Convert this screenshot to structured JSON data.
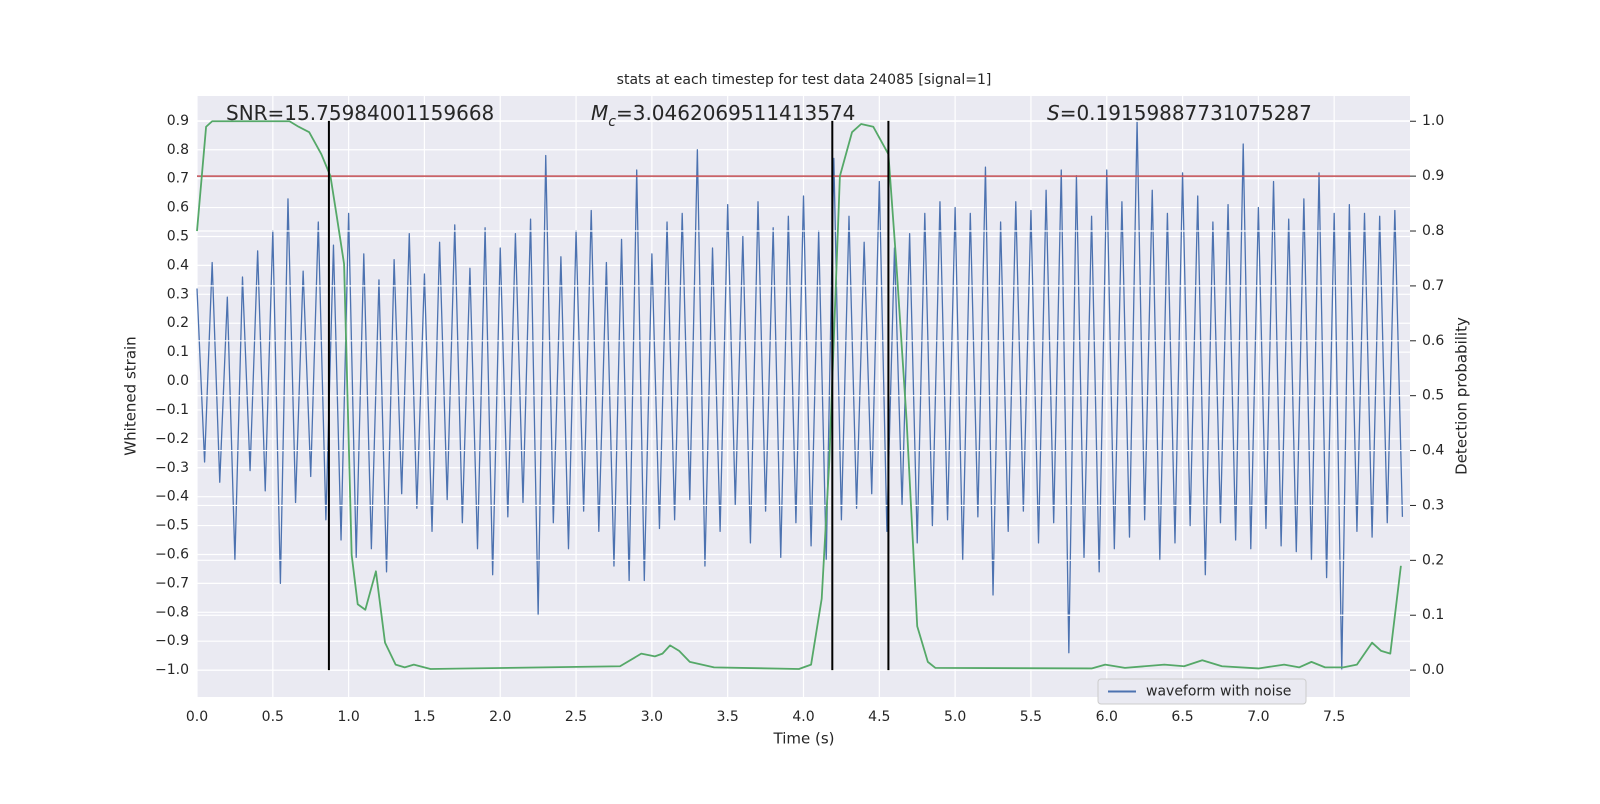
{
  "chart_data": {
    "type": "line",
    "title": "stats at each timestep for test data 24085 [signal=1]",
    "xlabel": "Time (s)",
    "ylabel": "Whitened strain",
    "y2label": "Detection probability",
    "annotations": [
      {
        "text": "SNR=15.75984001159668"
      },
      {
        "symbol": "M",
        "subscript": "c",
        "text": "=3.0462069511413574"
      },
      {
        "symbol": "S",
        "text": "=0.19159887731075287"
      }
    ],
    "xlim": [
      0,
      8.0
    ],
    "ylim": [
      -1.093,
      0.986
    ],
    "y2lim": [
      -0.049,
      1.046
    ],
    "xticks": [
      {
        "value": 0,
        "label": "0.0"
      },
      0.5,
      {
        "value": 1,
        "label": "1.0"
      },
      1.5,
      {
        "value": 2,
        "label": "2.0"
      },
      2.5,
      {
        "value": 3,
        "label": "3.0"
      },
      3.5,
      {
        "value": 4,
        "label": "4.0"
      },
      4.5,
      {
        "value": 5,
        "label": "5.0"
      },
      5.5,
      {
        "value": 6,
        "label": "6.0"
      },
      6.5,
      {
        "value": 7,
        "label": "7.0"
      },
      7.5
    ],
    "yticks": [
      {
        "value": -1,
        "label": "−1.0"
      },
      {
        "value": -0.9,
        "label": "−0.9"
      },
      {
        "value": -0.8,
        "label": "−0.8"
      },
      {
        "value": -0.7,
        "label": "−0.7"
      },
      {
        "value": -0.6,
        "label": "−0.6"
      },
      {
        "value": -0.5,
        "label": "−0.5"
      },
      {
        "value": -0.4,
        "label": "−0.4"
      },
      {
        "value": -0.3,
        "label": "−0.3"
      },
      {
        "value": -0.2,
        "label": "−0.2"
      },
      {
        "value": -0.1,
        "label": "−0.1"
      },
      {
        "value": 0,
        "label": "0.0"
      },
      0.1,
      0.2,
      0.3,
      0.4,
      0.5,
      0.6,
      0.7,
      0.8,
      0.9
    ],
    "y2ticks": [
      {
        "value": 0,
        "label": "0.0"
      },
      0.1,
      0.2,
      0.3,
      0.4,
      0.5,
      0.6,
      0.7,
      0.8,
      0.9,
      {
        "value": 1,
        "label": "1.0"
      }
    ],
    "grid": true,
    "legend": "best",
    "series": [
      {
        "name": "waveform with noise",
        "color": "#4c72b0",
        "x": [
          0,
          0.05,
          0.1,
          0.15,
          0.2,
          0.25,
          0.3,
          0.35,
          0.4,
          0.45,
          0.5,
          0.55,
          0.6,
          0.65,
          0.7,
          0.75,
          0.8,
          0.85,
          0.9,
          0.95,
          1,
          1.05,
          1.1,
          1.15,
          1.2,
          1.25,
          1.3,
          1.35,
          1.4,
          1.45,
          1.5,
          1.55,
          1.6,
          1.65,
          1.7,
          1.75,
          1.8,
          1.85,
          1.9,
          1.95,
          2,
          2.05,
          2.1,
          2.15,
          2.2,
          2.25,
          2.3,
          2.35,
          2.4,
          2.45,
          2.5,
          2.55,
          2.6,
          2.65,
          2.7,
          2.75,
          2.8,
          2.85,
          2.9,
          2.95,
          3,
          3.05,
          3.1,
          3.15,
          3.2,
          3.25,
          3.3,
          3.35,
          3.4,
          3.45,
          3.5,
          3.55,
          3.6,
          3.65,
          3.7,
          3.75,
          3.8,
          3.85,
          3.9,
          3.95,
          4,
          4.05,
          4.1,
          4.15,
          4.2,
          4.25,
          4.3,
          4.35,
          4.4,
          4.45,
          4.5,
          4.55,
          4.6,
          4.65,
          4.7,
          4.75,
          4.8,
          4.85,
          4.9,
          4.95,
          5,
          5.05,
          5.1,
          5.15,
          5.2,
          5.25,
          5.3,
          5.35,
          5.4,
          5.45,
          5.5,
          5.55,
          5.6,
          5.65,
          5.7,
          5.75,
          5.8,
          5.85,
          5.9,
          5.95,
          6,
          6.05,
          6.1,
          6.15,
          6.2,
          6.25,
          6.3,
          6.35,
          6.4,
          6.45,
          6.5,
          6.55,
          6.6,
          6.65,
          6.7,
          6.75,
          6.8,
          6.85,
          6.9,
          6.95,
          7,
          7.05,
          7.1,
          7.15,
          7.2,
          7.25,
          7.3,
          7.35,
          7.4,
          7.45,
          7.5,
          7.55,
          7.6,
          7.65,
          7.7,
          7.75,
          7.8,
          7.85,
          7.9,
          7.95
        ],
        "values": [
          0.32,
          -0.28,
          0.41,
          -0.35,
          0.29,
          -0.62,
          0.36,
          -0.31,
          0.45,
          -0.38,
          0.52,
          -0.7,
          0.63,
          -0.42,
          0.38,
          -0.33,
          0.55,
          -0.48,
          0.47,
          -0.55,
          0.58,
          -0.61,
          0.44,
          -0.58,
          0.35,
          -0.66,
          0.42,
          -0.39,
          0.51,
          -0.44,
          0.37,
          -0.52,
          0.48,
          -0.41,
          0.54,
          -0.49,
          0.39,
          -0.58,
          0.53,
          -0.67,
          0.46,
          -0.47,
          0.51,
          -0.42,
          0.56,
          -0.81,
          0.78,
          -0.49,
          0.43,
          -0.58,
          0.52,
          -0.45,
          0.59,
          -0.52,
          0.41,
          -0.64,
          0.49,
          -0.69,
          0.73,
          -0.69,
          0.44,
          -0.51,
          0.55,
          -0.48,
          0.58,
          -0.41,
          0.8,
          -0.64,
          0.46,
          -0.52,
          0.61,
          -0.43,
          0.5,
          -0.56,
          0.62,
          -0.45,
          0.53,
          -0.61,
          0.57,
          -0.49,
          0.64,
          -0.57,
          0.52,
          -0.62,
          0.77,
          -0.48,
          0.57,
          -0.44,
          0.48,
          -0.39,
          0.69,
          -0.52,
          0.46,
          -0.43,
          0.51,
          -0.56,
          0.58,
          -0.5,
          0.62,
          -0.48,
          0.6,
          -0.62,
          0.58,
          -0.47,
          0.74,
          -0.74,
          0.55,
          -0.52,
          0.62,
          -0.45,
          0.59,
          -0.56,
          0.66,
          -0.49,
          0.73,
          -0.94,
          0.71,
          -0.61,
          0.57,
          -0.66,
          0.73,
          -0.58,
          0.62,
          -0.54,
          0.9,
          -0.48,
          0.66,
          -0.62,
          0.58,
          -0.56,
          0.72,
          -0.5,
          0.64,
          -0.67,
          0.55,
          -0.49,
          0.61,
          -0.55,
          0.82,
          -0.58,
          0.6,
          -0.51,
          0.69,
          -0.57,
          0.56,
          -0.59,
          0.63,
          -0.62,
          0.72,
          -0.68,
          0.58,
          -1.0,
          0.61,
          -0.52,
          0.58,
          -0.54,
          0.57,
          -0.49,
          0.59,
          -0.47
        ]
      }
    ],
    "probability": {
      "color": "#55a868",
      "axis": "y2",
      "x": [
        0,
        0.06,
        0.1,
        0.61,
        0.67,
        0.74,
        0.82,
        0.88,
        0.92,
        0.97,
        1.02,
        1.06,
        1.11,
        1.18,
        1.24,
        1.31,
        1.37,
        1.43,
        1.54,
        2.79,
        2.93,
        3.02,
        3.07,
        3.12,
        3.18,
        3.25,
        3.41,
        3.97,
        4.05,
        4.12,
        4.17,
        4.24,
        4.32,
        4.38,
        4.46,
        4.51,
        4.56,
        4.61,
        4.68,
        4.75,
        4.82,
        4.87,
        5.9,
        5.99,
        6.12,
        6.38,
        6.51,
        6.63,
        6.76,
        7.0,
        7.17,
        7.27,
        7.35,
        7.44,
        7.56,
        7.65,
        7.75,
        7.81,
        7.87,
        7.94
      ],
      "values": [
        0.8,
        0.99,
        1.0,
        1.0,
        0.99,
        0.98,
        0.94,
        0.9,
        0.83,
        0.74,
        0.21,
        0.12,
        0.11,
        0.18,
        0.05,
        0.01,
        0.005,
        0.01,
        0.002,
        0.007,
        0.03,
        0.025,
        0.03,
        0.045,
        0.035,
        0.015,
        0.005,
        0.002,
        0.01,
        0.13,
        0.38,
        0.9,
        0.98,
        0.995,
        0.99,
        0.965,
        0.94,
        0.75,
        0.455,
        0.08,
        0.015,
        0.004,
        0.003,
        0.01,
        0.004,
        0.01,
        0.007,
        0.018,
        0.007,
        0.003,
        0.01,
        0.005,
        0.015,
        0.005,
        0.005,
        0.01,
        0.05,
        0.035,
        0.03,
        0.19
      ]
    },
    "threshold": {
      "value": 0.9,
      "axis": "y2",
      "color": "#c44e52"
    },
    "vlines": {
      "x": [
        0.87,
        4.19,
        4.56
      ],
      "ymin": -1.0,
      "ymax": 0.9,
      "color": "#000000"
    }
  }
}
